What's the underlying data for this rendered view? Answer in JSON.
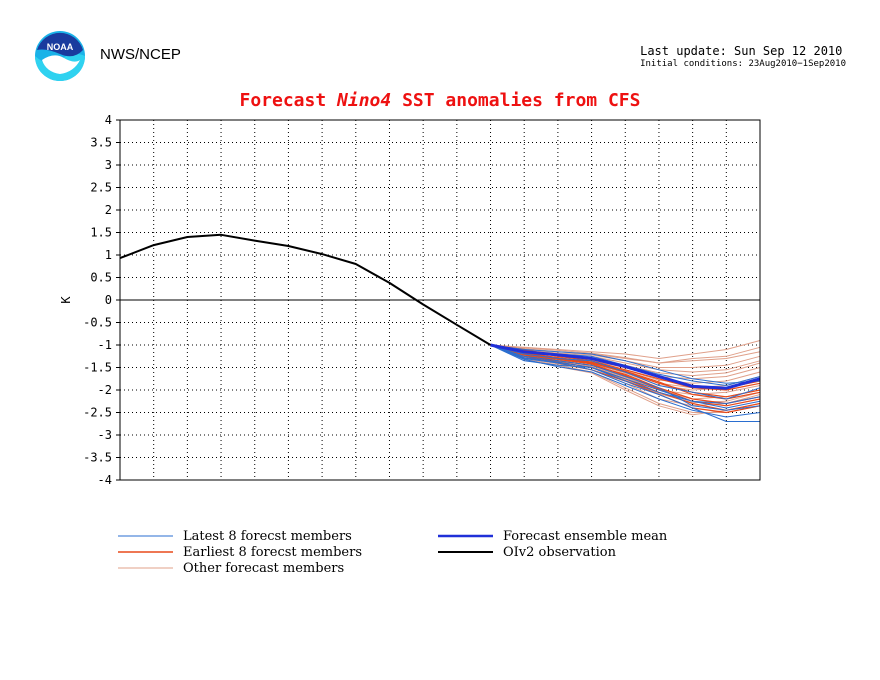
{
  "header": {
    "org": "NWS/NCEP",
    "last_update": "Last update: Sun Sep 12 2010",
    "initial_conditions": "Initial conditions: 23Aug2010−1Sep2010"
  },
  "chart_data": {
    "type": "line",
    "title_prefix": "Forecast ",
    "title_region": "Nino4",
    "title_suffix": " SST anomalies from CFS",
    "ylabel": "K",
    "ylim": [
      -4,
      4
    ],
    "y_ticks": [
      "4",
      "3.5",
      "3",
      "2.5",
      "2",
      "1.5",
      "1",
      "0.5",
      "0",
      "-0.5",
      "-1",
      "-1.5",
      "-2",
      "-2.5",
      "-3",
      "-3.5",
      "-4"
    ],
    "x_count": 19,
    "grid": true,
    "colors": {
      "latest": "#2a6ed0",
      "earliest": "#e84a1a",
      "other": "#e0a08a",
      "mean": "#2030d8",
      "observation": "#000000"
    },
    "legend": [
      {
        "key": "latest",
        "label": "Latest 8 forecst members"
      },
      {
        "key": "earliest",
        "label": "Earliest 8 forecst members"
      },
      {
        "key": "other",
        "label": "Other forecast members"
      },
      {
        "key": "mean",
        "label": "Forecast ensemble mean"
      },
      {
        "key": "observation",
        "label": "OIv2 observation"
      }
    ],
    "observation": {
      "x": [
        0,
        1,
        2,
        3,
        4,
        5,
        6,
        7,
        8,
        9,
        10,
        11
      ],
      "y": [
        0.93,
        1.22,
        1.4,
        1.45,
        1.32,
        1.2,
        1.02,
        0.8,
        0.38,
        -0.1,
        -0.55,
        -1.0
      ]
    },
    "ensemble_mean": {
      "x": [
        11,
        12,
        13,
        14,
        15,
        16,
        17,
        18,
        19
      ],
      "y": [
        -1.0,
        -1.15,
        -1.22,
        -1.3,
        -1.48,
        -1.7,
        -1.92,
        -1.96,
        -1.75
      ]
    },
    "latest_members": [
      {
        "x": [
          11,
          12,
          13,
          14,
          15,
          16,
          17,
          18,
          19
        ],
        "y": [
          -1.0,
          -1.3,
          -1.4,
          -1.55,
          -1.85,
          -2.1,
          -2.4,
          -2.7,
          -2.7
        ]
      },
      {
        "x": [
          11,
          12,
          13,
          14,
          15,
          16,
          17,
          18,
          19
        ],
        "y": [
          -1.0,
          -1.35,
          -1.45,
          -1.5,
          -1.75,
          -2.0,
          -2.25,
          -2.3,
          -2.15
        ]
      },
      {
        "x": [
          11,
          12,
          13,
          14,
          15,
          16,
          17,
          18,
          19
        ],
        "y": [
          -1.0,
          -1.2,
          -1.3,
          -1.35,
          -1.6,
          -1.9,
          -2.05,
          -2.2,
          -1.95
        ]
      },
      {
        "x": [
          11,
          12,
          13,
          14,
          15,
          16,
          17,
          18,
          19
        ],
        "y": [
          -1.0,
          -1.25,
          -1.35,
          -1.45,
          -1.7,
          -1.95,
          -2.35,
          -2.45,
          -2.35
        ]
      },
      {
        "x": [
          11,
          12,
          13,
          14,
          15,
          16,
          17,
          18,
          19
        ],
        "y": [
          -1.0,
          -1.15,
          -1.2,
          -1.25,
          -1.45,
          -1.65,
          -1.8,
          -1.9,
          -1.7
        ]
      },
      {
        "x": [
          11,
          12,
          13,
          14,
          15,
          16,
          17,
          18,
          19
        ],
        "y": [
          -1.0,
          -1.28,
          -1.38,
          -1.5,
          -1.8,
          -2.05,
          -2.25,
          -2.4,
          -2.25
        ]
      },
      {
        "x": [
          11,
          12,
          13,
          14,
          15,
          16,
          17,
          18,
          19
        ],
        "y": [
          -1.0,
          -1.1,
          -1.15,
          -1.2,
          -1.35,
          -1.55,
          -1.75,
          -1.85,
          -1.8
        ]
      },
      {
        "x": [
          11,
          12,
          13,
          14,
          15,
          16,
          17,
          18,
          19
        ],
        "y": [
          -1.0,
          -1.32,
          -1.48,
          -1.6,
          -1.9,
          -2.2,
          -2.45,
          -2.6,
          -2.5
        ]
      }
    ],
    "earliest_members": [
      {
        "x": [
          11,
          12,
          13,
          14,
          15,
          16,
          17,
          18,
          19
        ],
        "y": [
          -1.0,
          -1.15,
          -1.3,
          -1.4,
          -1.6,
          -1.85,
          -2.05,
          -2.15,
          -2.0
        ]
      },
      {
        "x": [
          11,
          12,
          13,
          14,
          15,
          16,
          17,
          18,
          19
        ],
        "y": [
          -1.0,
          -1.2,
          -1.35,
          -1.45,
          -1.65,
          -1.95,
          -2.2,
          -2.3,
          -2.15
        ]
      },
      {
        "x": [
          11,
          12,
          13,
          14,
          15,
          16,
          17,
          18,
          19
        ],
        "y": [
          -1.0,
          -1.1,
          -1.25,
          -1.35,
          -1.55,
          -1.75,
          -1.95,
          -2.0,
          -1.85
        ]
      },
      {
        "x": [
          11,
          12,
          13,
          14,
          15,
          16,
          17,
          18,
          19
        ],
        "y": [
          -1.0,
          -1.22,
          -1.38,
          -1.5,
          -1.75,
          -2.05,
          -2.3,
          -2.45,
          -2.3
        ]
      },
      {
        "x": [
          11,
          12,
          13,
          14,
          15,
          16,
          17,
          18,
          19
        ],
        "y": [
          -1.0,
          -1.18,
          -1.28,
          -1.38,
          -1.58,
          -1.82,
          -2.1,
          -2.2,
          -2.05
        ]
      },
      {
        "x": [
          11,
          12,
          13,
          14,
          15,
          16,
          17,
          18,
          19
        ],
        "y": [
          -1.0,
          -1.25,
          -1.4,
          -1.55,
          -1.8,
          -2.1,
          -2.4,
          -2.5,
          -2.35
        ]
      },
      {
        "x": [
          11,
          12,
          13,
          14,
          15,
          16,
          17,
          18,
          19
        ],
        "y": [
          -1.0,
          -1.12,
          -1.22,
          -1.32,
          -1.5,
          -1.7,
          -1.9,
          -1.95,
          -1.8
        ]
      },
      {
        "x": [
          11,
          12,
          13,
          14,
          15,
          16,
          17,
          18,
          19
        ],
        "y": [
          -1.0,
          -1.2,
          -1.32,
          -1.42,
          -1.68,
          -1.98,
          -2.25,
          -2.35,
          -2.2
        ]
      }
    ],
    "other_members": [
      {
        "x": [
          11,
          12,
          13,
          14,
          15,
          16,
          17,
          18,
          19
        ],
        "y": [
          -1.0,
          -1.05,
          -1.1,
          -1.15,
          -1.2,
          -1.3,
          -1.2,
          -1.1,
          -0.9
        ]
      },
      {
        "x": [
          11,
          12,
          13,
          14,
          15,
          16,
          17,
          18,
          19
        ],
        "y": [
          -1.0,
          -1.08,
          -1.15,
          -1.2,
          -1.3,
          -1.4,
          -1.35,
          -1.3,
          -1.15
        ]
      },
      {
        "x": [
          11,
          12,
          13,
          14,
          15,
          16,
          17,
          18,
          19
        ],
        "y": [
          -1.0,
          -1.12,
          -1.2,
          -1.25,
          -1.4,
          -1.55,
          -1.6,
          -1.55,
          -1.35
        ]
      },
      {
        "x": [
          11,
          12,
          13,
          14,
          15,
          16,
          17,
          18,
          19
        ],
        "y": [
          -1.0,
          -1.15,
          -1.25,
          -1.35,
          -1.5,
          -1.7,
          -1.75,
          -1.7,
          -1.5
        ]
      },
      {
        "x": [
          11,
          12,
          13,
          14,
          15,
          16,
          17,
          18,
          19
        ],
        "y": [
          -1.0,
          -1.2,
          -1.3,
          -1.4,
          -1.6,
          -1.85,
          -1.95,
          -1.9,
          -1.7
        ]
      },
      {
        "x": [
          11,
          12,
          13,
          14,
          15,
          16,
          17,
          18,
          19
        ],
        "y": [
          -1.0,
          -1.25,
          -1.35,
          -1.45,
          -1.7,
          -2.0,
          -2.1,
          -2.05,
          -1.9
        ]
      },
      {
        "x": [
          11,
          12,
          13,
          14,
          15,
          16,
          17,
          18,
          19
        ],
        "y": [
          -1.0,
          -1.28,
          -1.42,
          -1.55,
          -1.85,
          -2.2,
          -2.35,
          -2.3,
          -2.1
        ]
      },
      {
        "x": [
          11,
          12,
          13,
          14,
          15,
          16,
          17,
          18,
          19
        ],
        "y": [
          -1.0,
          -1.3,
          -1.45,
          -1.6,
          -1.95,
          -2.3,
          -2.5,
          -2.5,
          -2.35
        ]
      },
      {
        "x": [
          11,
          12,
          13,
          14,
          15,
          16,
          17,
          18,
          19
        ],
        "y": [
          -1.0,
          -1.1,
          -1.18,
          -1.22,
          -1.35,
          -1.5,
          -1.5,
          -1.45,
          -1.25
        ]
      },
      {
        "x": [
          11,
          12,
          13,
          14,
          15,
          16,
          17,
          18,
          19
        ],
        "y": [
          -1.0,
          -1.18,
          -1.28,
          -1.38,
          -1.55,
          -1.78,
          -1.85,
          -1.8,
          -1.6
        ]
      },
      {
        "x": [
          11,
          12,
          13,
          14,
          15,
          16,
          17,
          18,
          19
        ],
        "y": [
          -1.0,
          -1.22,
          -1.32,
          -1.48,
          -1.72,
          -2.0,
          -2.2,
          -2.15,
          -2.0
        ]
      },
      {
        "x": [
          11,
          12,
          13,
          14,
          15,
          16,
          17,
          18,
          19
        ],
        "y": [
          -1.0,
          -1.32,
          -1.48,
          -1.62,
          -2.0,
          -2.35,
          -2.55,
          -2.45,
          -2.3
        ]
      },
      {
        "x": [
          11,
          12,
          13,
          14,
          15,
          16,
          17,
          18,
          19
        ],
        "y": [
          -1.0,
          -1.06,
          -1.12,
          -1.18,
          -1.28,
          -1.4,
          -1.3,
          -1.25,
          -1.05
        ]
      },
      {
        "x": [
          11,
          12,
          13,
          14,
          15,
          16,
          17,
          18,
          19
        ],
        "y": [
          -1.0,
          -1.14,
          -1.24,
          -1.3,
          -1.45,
          -1.62,
          -1.68,
          -1.62,
          -1.4
        ]
      },
      {
        "x": [
          11,
          12,
          13,
          14,
          15,
          16,
          17,
          18,
          19
        ],
        "y": [
          -1.0,
          -1.24,
          -1.36,
          -1.5,
          -1.78,
          -2.08,
          -2.28,
          -2.25,
          -2.05
        ]
      },
      {
        "x": [
          11,
          12,
          13,
          14,
          15,
          16,
          17,
          18,
          19
        ],
        "y": [
          -1.0,
          -1.2,
          -1.3,
          -1.42,
          -1.62,
          -1.9,
          -2.0,
          -1.95,
          -1.78
        ]
      }
    ]
  }
}
